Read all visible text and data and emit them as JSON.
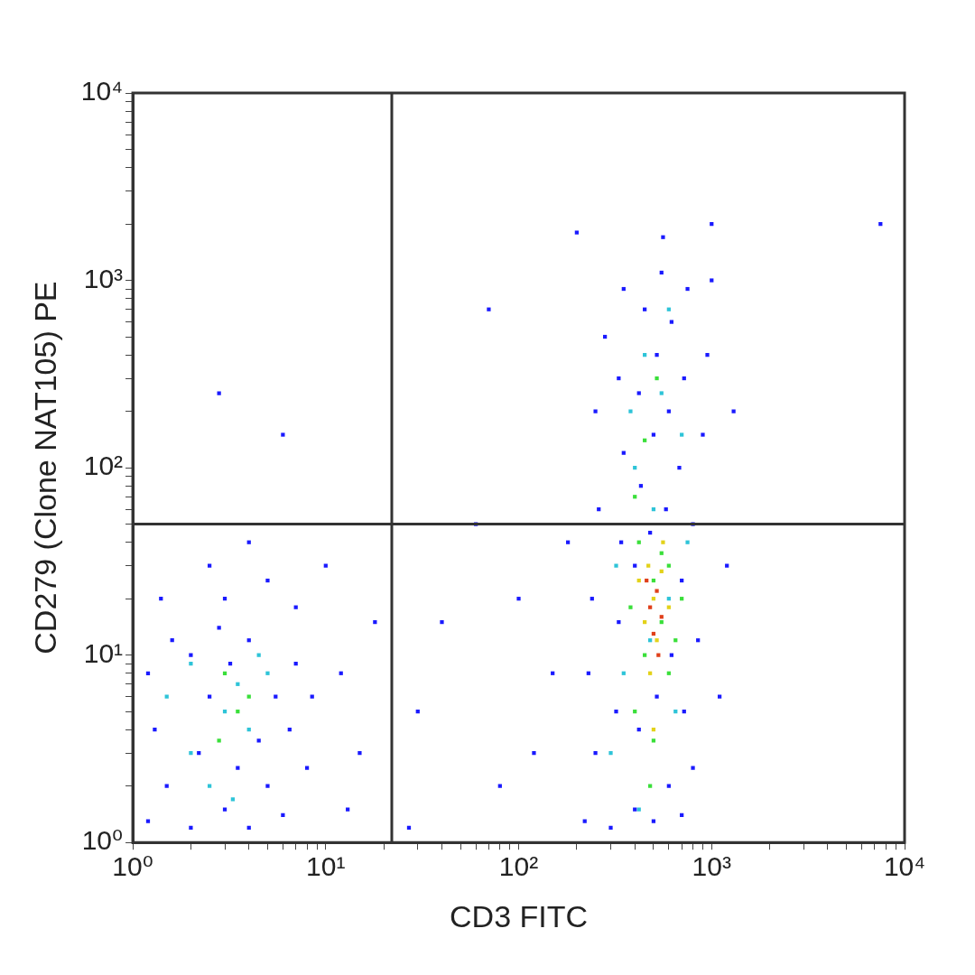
{
  "chart_data": {
    "type": "scatter",
    "xlabel": "CD3 FITC",
    "ylabel": "CD279 (Clone NAT105) PE",
    "log": "xy",
    "grid": false,
    "legend": false,
    "marker": "square",
    "xlim": [
      1,
      10000
    ],
    "ylim": [
      1,
      10000
    ],
    "xticks": [
      {
        "value": 1,
        "label": "10⁰"
      },
      {
        "value": 2,
        "label": null
      },
      {
        "value": 3,
        "label": null
      },
      {
        "value": 4,
        "label": null
      },
      {
        "value": 5,
        "label": null
      },
      {
        "value": 6,
        "label": null
      },
      {
        "value": 7,
        "label": null
      },
      {
        "value": 8,
        "label": null
      },
      {
        "value": 9,
        "label": null
      },
      {
        "value": 10,
        "label": "10¹"
      },
      {
        "value": 20,
        "label": null
      },
      {
        "value": 30,
        "label": null
      },
      {
        "value": 40,
        "label": null
      },
      {
        "value": 50,
        "label": null
      },
      {
        "value": 60,
        "label": null
      },
      {
        "value": 70,
        "label": null
      },
      {
        "value": 80,
        "label": null
      },
      {
        "value": 90,
        "label": null
      },
      {
        "value": 100,
        "label": "10²"
      },
      {
        "value": 200,
        "label": null
      },
      {
        "value": 300,
        "label": null
      },
      {
        "value": 400,
        "label": null
      },
      {
        "value": 500,
        "label": null
      },
      {
        "value": 600,
        "label": null
      },
      {
        "value": 700,
        "label": null
      },
      {
        "value": 800,
        "label": null
      },
      {
        "value": 900,
        "label": null
      },
      {
        "value": 1000,
        "label": "10³"
      },
      {
        "value": 2000,
        "label": null
      },
      {
        "value": 3000,
        "label": null
      },
      {
        "value": 4000,
        "label": null
      },
      {
        "value": 5000,
        "label": null
      },
      {
        "value": 6000,
        "label": null
      },
      {
        "value": 7000,
        "label": null
      },
      {
        "value": 8000,
        "label": null
      },
      {
        "value": 9000,
        "label": null
      },
      {
        "value": 10000,
        "label": "10⁴"
      }
    ],
    "yticks": [
      {
        "value": 1,
        "label": "10⁰"
      },
      {
        "value": 2,
        "label": null
      },
      {
        "value": 3,
        "label": null
      },
      {
        "value": 4,
        "label": null
      },
      {
        "value": 5,
        "label": null
      },
      {
        "value": 6,
        "label": null
      },
      {
        "value": 7,
        "label": null
      },
      {
        "value": 8,
        "label": null
      },
      {
        "value": 9,
        "label": null
      },
      {
        "value": 10,
        "label": "10¹"
      },
      {
        "value": 20,
        "label": null
      },
      {
        "value": 30,
        "label": null
      },
      {
        "value": 40,
        "label": null
      },
      {
        "value": 50,
        "label": null
      },
      {
        "value": 60,
        "label": null
      },
      {
        "value": 70,
        "label": null
      },
      {
        "value": 80,
        "label": null
      },
      {
        "value": 90,
        "label": null
      },
      {
        "value": 100,
        "label": "10²"
      },
      {
        "value": 200,
        "label": null
      },
      {
        "value": 300,
        "label": null
      },
      {
        "value": 400,
        "label": null
      },
      {
        "value": 500,
        "label": null
      },
      {
        "value": 600,
        "label": null
      },
      {
        "value": 700,
        "label": null
      },
      {
        "value": 800,
        "label": null
      },
      {
        "value": 900,
        "label": null
      },
      {
        "value": 1000,
        "label": "10³"
      },
      {
        "value": 2000,
        "label": null
      },
      {
        "value": 3000,
        "label": null
      },
      {
        "value": 4000,
        "label": null
      },
      {
        "value": 5000,
        "label": null
      },
      {
        "value": 6000,
        "label": null
      },
      {
        "value": 7000,
        "label": null
      },
      {
        "value": 8000,
        "label": null
      },
      {
        "value": 9000,
        "label": null
      },
      {
        "value": 10000,
        "label": "10⁴"
      }
    ],
    "ref_lines": [
      {
        "axis": "x",
        "value": 22,
        "color": "#333333"
      },
      {
        "axis": "y",
        "value": 50,
        "color": "#333333"
      }
    ],
    "series": [
      {
        "color": "#1a1aff",
        "x": [
          1.2,
          1.5,
          1.3,
          1.2,
          1.6,
          2,
          2.2,
          2.5,
          2,
          2.8,
          3,
          3.5,
          3.2,
          4,
          4.5,
          4,
          5,
          5.5,
          6,
          6.5,
          7,
          8,
          8.5,
          3,
          5,
          2.5,
          7,
          10,
          12,
          15,
          18,
          13,
          1.4,
          4,
          2.8,
          6,
          220,
          250,
          230,
          240,
          260,
          250,
          280,
          300,
          320,
          330,
          340,
          350,
          330,
          350,
          400,
          420,
          400,
          430,
          420,
          450,
          500,
          520,
          480,
          500,
          520,
          550,
          600,
          620,
          580,
          600,
          620,
          700,
          720,
          700,
          680,
          720,
          750,
          800,
          850,
          800,
          900,
          950,
          1000,
          1100,
          1200,
          1300,
          180,
          150,
          120,
          100,
          80,
          60,
          40,
          30,
          70,
          200,
          560,
          1000,
          7500,
          27
        ],
        "values": [
          1.3,
          2,
          4,
          8,
          12,
          1.2,
          3,
          6,
          10,
          14,
          1.5,
          2.5,
          9,
          1.2,
          3.5,
          12,
          2,
          6,
          1.4,
          4,
          9,
          2.5,
          6,
          20,
          25,
          30,
          18,
          30,
          8,
          3,
          15,
          1.5,
          20,
          40,
          250,
          150,
          1.3,
          3,
          8,
          20,
          60,
          200,
          500,
          1.2,
          5,
          15,
          40,
          120,
          300,
          900,
          1.5,
          4,
          30,
          80,
          250,
          700,
          1.3,
          6,
          45,
          150,
          400,
          1100,
          2,
          10,
          60,
          200,
          600,
          1.4,
          5,
          25,
          100,
          300,
          900,
          2.5,
          12,
          50,
          150,
          400,
          1000,
          6,
          30,
          200,
          40,
          8,
          3,
          20,
          2,
          50,
          15,
          5,
          700,
          1800,
          1700,
          2000,
          2000,
          1.2
        ]
      },
      {
        "color": "#2ec4d8",
        "x": [
          2,
          3,
          3.5,
          2.5,
          4,
          5,
          1.5,
          3.3,
          4.5,
          2,
          300,
          350,
          380,
          400,
          450,
          500,
          550,
          600,
          650,
          700,
          420,
          750,
          320,
          600,
          480
        ],
        "values": [
          3,
          5,
          7,
          2,
          4,
          8,
          6,
          1.7,
          10,
          9,
          3,
          8,
          200,
          100,
          400,
          60,
          250,
          20,
          5,
          150,
          1.5,
          40,
          30,
          700,
          12
        ]
      },
      {
        "color": "#3adf3a",
        "x": [
          3.5,
          2.8,
          4,
          3,
          400,
          450,
          500,
          550,
          600,
          420,
          480,
          550,
          650,
          380,
          500,
          600,
          450,
          520,
          700,
          400
        ],
        "values": [
          5,
          3.5,
          6,
          8,
          5,
          10,
          25,
          15,
          8,
          40,
          2,
          35,
          12,
          18,
          3.5,
          30,
          140,
          300,
          20,
          70
        ]
      },
      {
        "color": "#e3d21a",
        "x": [
          450,
          500,
          550,
          480,
          600,
          420,
          520,
          560,
          470,
          500
        ],
        "values": [
          15,
          20,
          28,
          8,
          18,
          25,
          12,
          40,
          30,
          4
        ]
      },
      {
        "color": "#e0401a",
        "x": [
          480,
          520,
          500,
          550,
          460,
          530
        ],
        "values": [
          18,
          22,
          13,
          16,
          25,
          10
        ]
      }
    ]
  }
}
